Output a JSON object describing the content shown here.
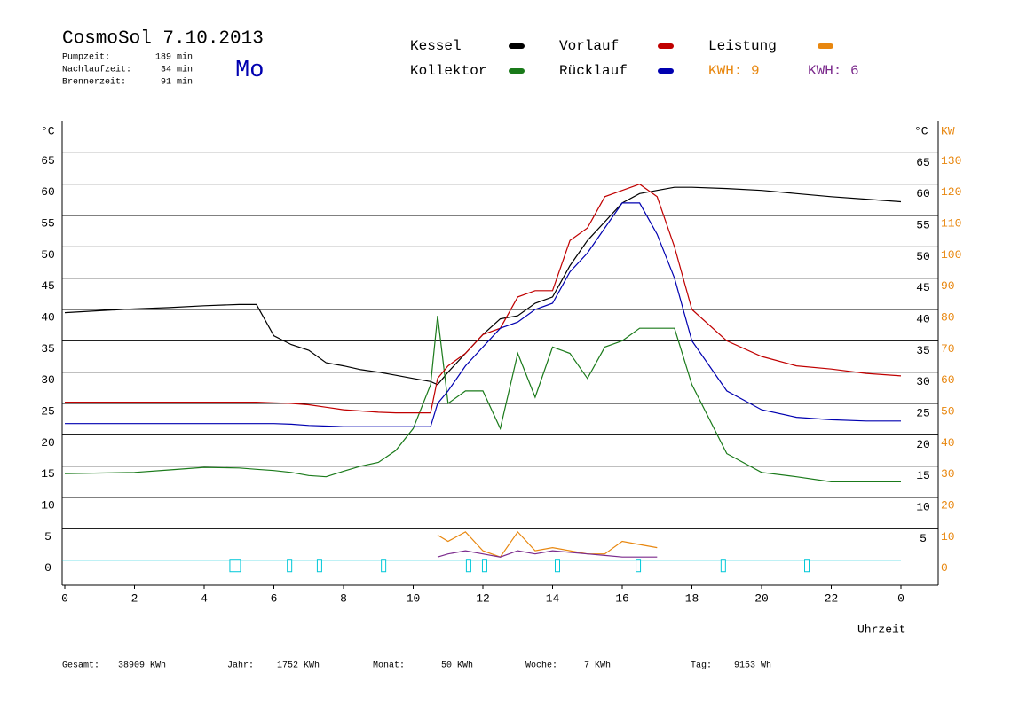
{
  "header": {
    "title": "CosmoSol 7.10.2013",
    "day": "Mo",
    "stats": [
      [
        "Pumpzeit:",
        "189 min"
      ],
      [
        "Nachlaufzeit:",
        "34 min"
      ],
      [
        "Brennerzeit:",
        "91 min"
      ]
    ]
  },
  "footer": [
    [
      "Gesamt:",
      "38909 KWh"
    ],
    [
      "Jahr:",
      "1752 KWh"
    ],
    [
      "Monat:",
      "50 KWh"
    ],
    [
      "Woche:",
      "7 KWh"
    ],
    [
      "Tag:",
      "9153 Wh"
    ]
  ],
  "chart_data": {
    "type": "line",
    "ylabel": "°C",
    "y2label_celsius": "°C",
    "y2label": "KW",
    "xlabel": "Uhrzeit",
    "kwh_labels": [
      {
        "text": "KWH: 9",
        "color": "#e8870f"
      },
      {
        "text": "KWH: 6",
        "color": "#7b2a8c"
      }
    ],
    "xlim": [
      0,
      25
    ],
    "xticks": [
      0,
      2,
      4,
      6,
      8,
      10,
      12,
      14,
      16,
      18,
      20,
      22,
      {
        "value": 24,
        "label": "0"
      }
    ],
    "ylim": [
      -4,
      70
    ],
    "yticks": [
      0,
      5,
      10,
      15,
      20,
      25,
      30,
      35,
      40,
      45,
      50,
      55,
      60,
      65
    ],
    "y2lim": [
      -8,
      140
    ],
    "y2ticks": [
      0,
      10,
      20,
      30,
      40,
      50,
      60,
      70,
      80,
      90,
      100,
      110,
      120,
      130
    ],
    "grid": true,
    "x": [
      0,
      1,
      2,
      3,
      4,
      5,
      5.5,
      6,
      6.5,
      7,
      7.5,
      8,
      8.5,
      9,
      9.5,
      10,
      10.5,
      10.7,
      11,
      11.5,
      12,
      12.5,
      13,
      13.5,
      14,
      14.5,
      15,
      15.5,
      16,
      16.5,
      17,
      17.5,
      18,
      19,
      20,
      21,
      22,
      23,
      24
    ],
    "series": [
      {
        "name": "Kessel",
        "color": "#000000",
        "values": [
          39.5,
          39.8,
          40.1,
          40.3,
          40.6,
          40.8,
          40.8,
          35.8,
          34.4,
          33.5,
          31.5,
          31,
          30.4,
          30,
          29.5,
          29,
          28.5,
          28,
          30,
          33,
          36,
          38.5,
          39,
          41,
          42,
          47,
          51,
          54,
          57,
          58.5,
          59,
          59.5,
          59.5,
          59.3,
          59,
          58.5,
          58,
          57.6,
          57.2
        ]
      },
      {
        "name": "Kollektor",
        "color": "#1a7a1a",
        "values": [
          13.8,
          13.9,
          14,
          14.4,
          14.8,
          14.7,
          14.5,
          14.3,
          14,
          13.5,
          13.3,
          14.2,
          15,
          15.6,
          17.5,
          21,
          28,
          39,
          25,
          27,
          27,
          21,
          33,
          26,
          34,
          33,
          29,
          34,
          35,
          37,
          37,
          37,
          28,
          17,
          14,
          13.3,
          12.5,
          12.5,
          12.5
        ]
      },
      {
        "name": "Vorlauf",
        "color": "#c00000",
        "values": [
          25.2,
          25.2,
          25.2,
          25.2,
          25.2,
          25.2,
          25.2,
          25.1,
          25,
          24.8,
          24.4,
          24,
          23.8,
          23.6,
          23.5,
          23.5,
          23.5,
          29,
          31,
          33,
          36,
          37,
          42,
          43,
          43,
          51,
          53,
          58,
          59,
          60,
          58,
          50,
          40,
          35,
          32.5,
          31,
          30.5,
          29.8,
          29.4
        ]
      },
      {
        "name": "Rücklauf",
        "color": "#0000b0",
        "values": [
          21.8,
          21.8,
          21.8,
          21.8,
          21.8,
          21.8,
          21.8,
          21.8,
          21.7,
          21.5,
          21.4,
          21.3,
          21.3,
          21.3,
          21.3,
          21.3,
          21.3,
          25,
          27,
          31,
          34,
          37,
          38,
          40,
          41,
          46,
          49,
          53,
          57,
          57,
          52,
          45,
          35,
          27,
          24,
          22.8,
          22.4,
          22.2,
          22.2
        ]
      },
      {
        "name": "Leistung",
        "color": "#e8870f",
        "axis": "y2",
        "values": [
          null,
          null,
          null,
          null,
          null,
          null,
          null,
          null,
          null,
          null,
          null,
          null,
          null,
          null,
          null,
          null,
          null,
          8,
          6,
          9,
          3,
          1,
          9,
          3,
          4,
          3,
          2,
          2,
          6,
          5,
          4,
          null,
          null,
          null,
          null,
          null,
          null,
          null,
          null
        ]
      },
      {
        "color": "#7b2a8c",
        "axis": "y2",
        "values": [
          null,
          null,
          null,
          null,
          null,
          null,
          null,
          null,
          null,
          null,
          null,
          null,
          null,
          null,
          null,
          null,
          null,
          1,
          2,
          3,
          2,
          1,
          3,
          2,
          3,
          2.5,
          2,
          1.5,
          1,
          1,
          1,
          null,
          null,
          null,
          null,
          null,
          null,
          null,
          null
        ]
      }
    ],
    "markers": [
      4.89,
      6.45,
      7.31,
      9.15,
      11.59,
      12.05,
      14.14,
      16.46,
      18.9,
      21.3
    ]
  }
}
